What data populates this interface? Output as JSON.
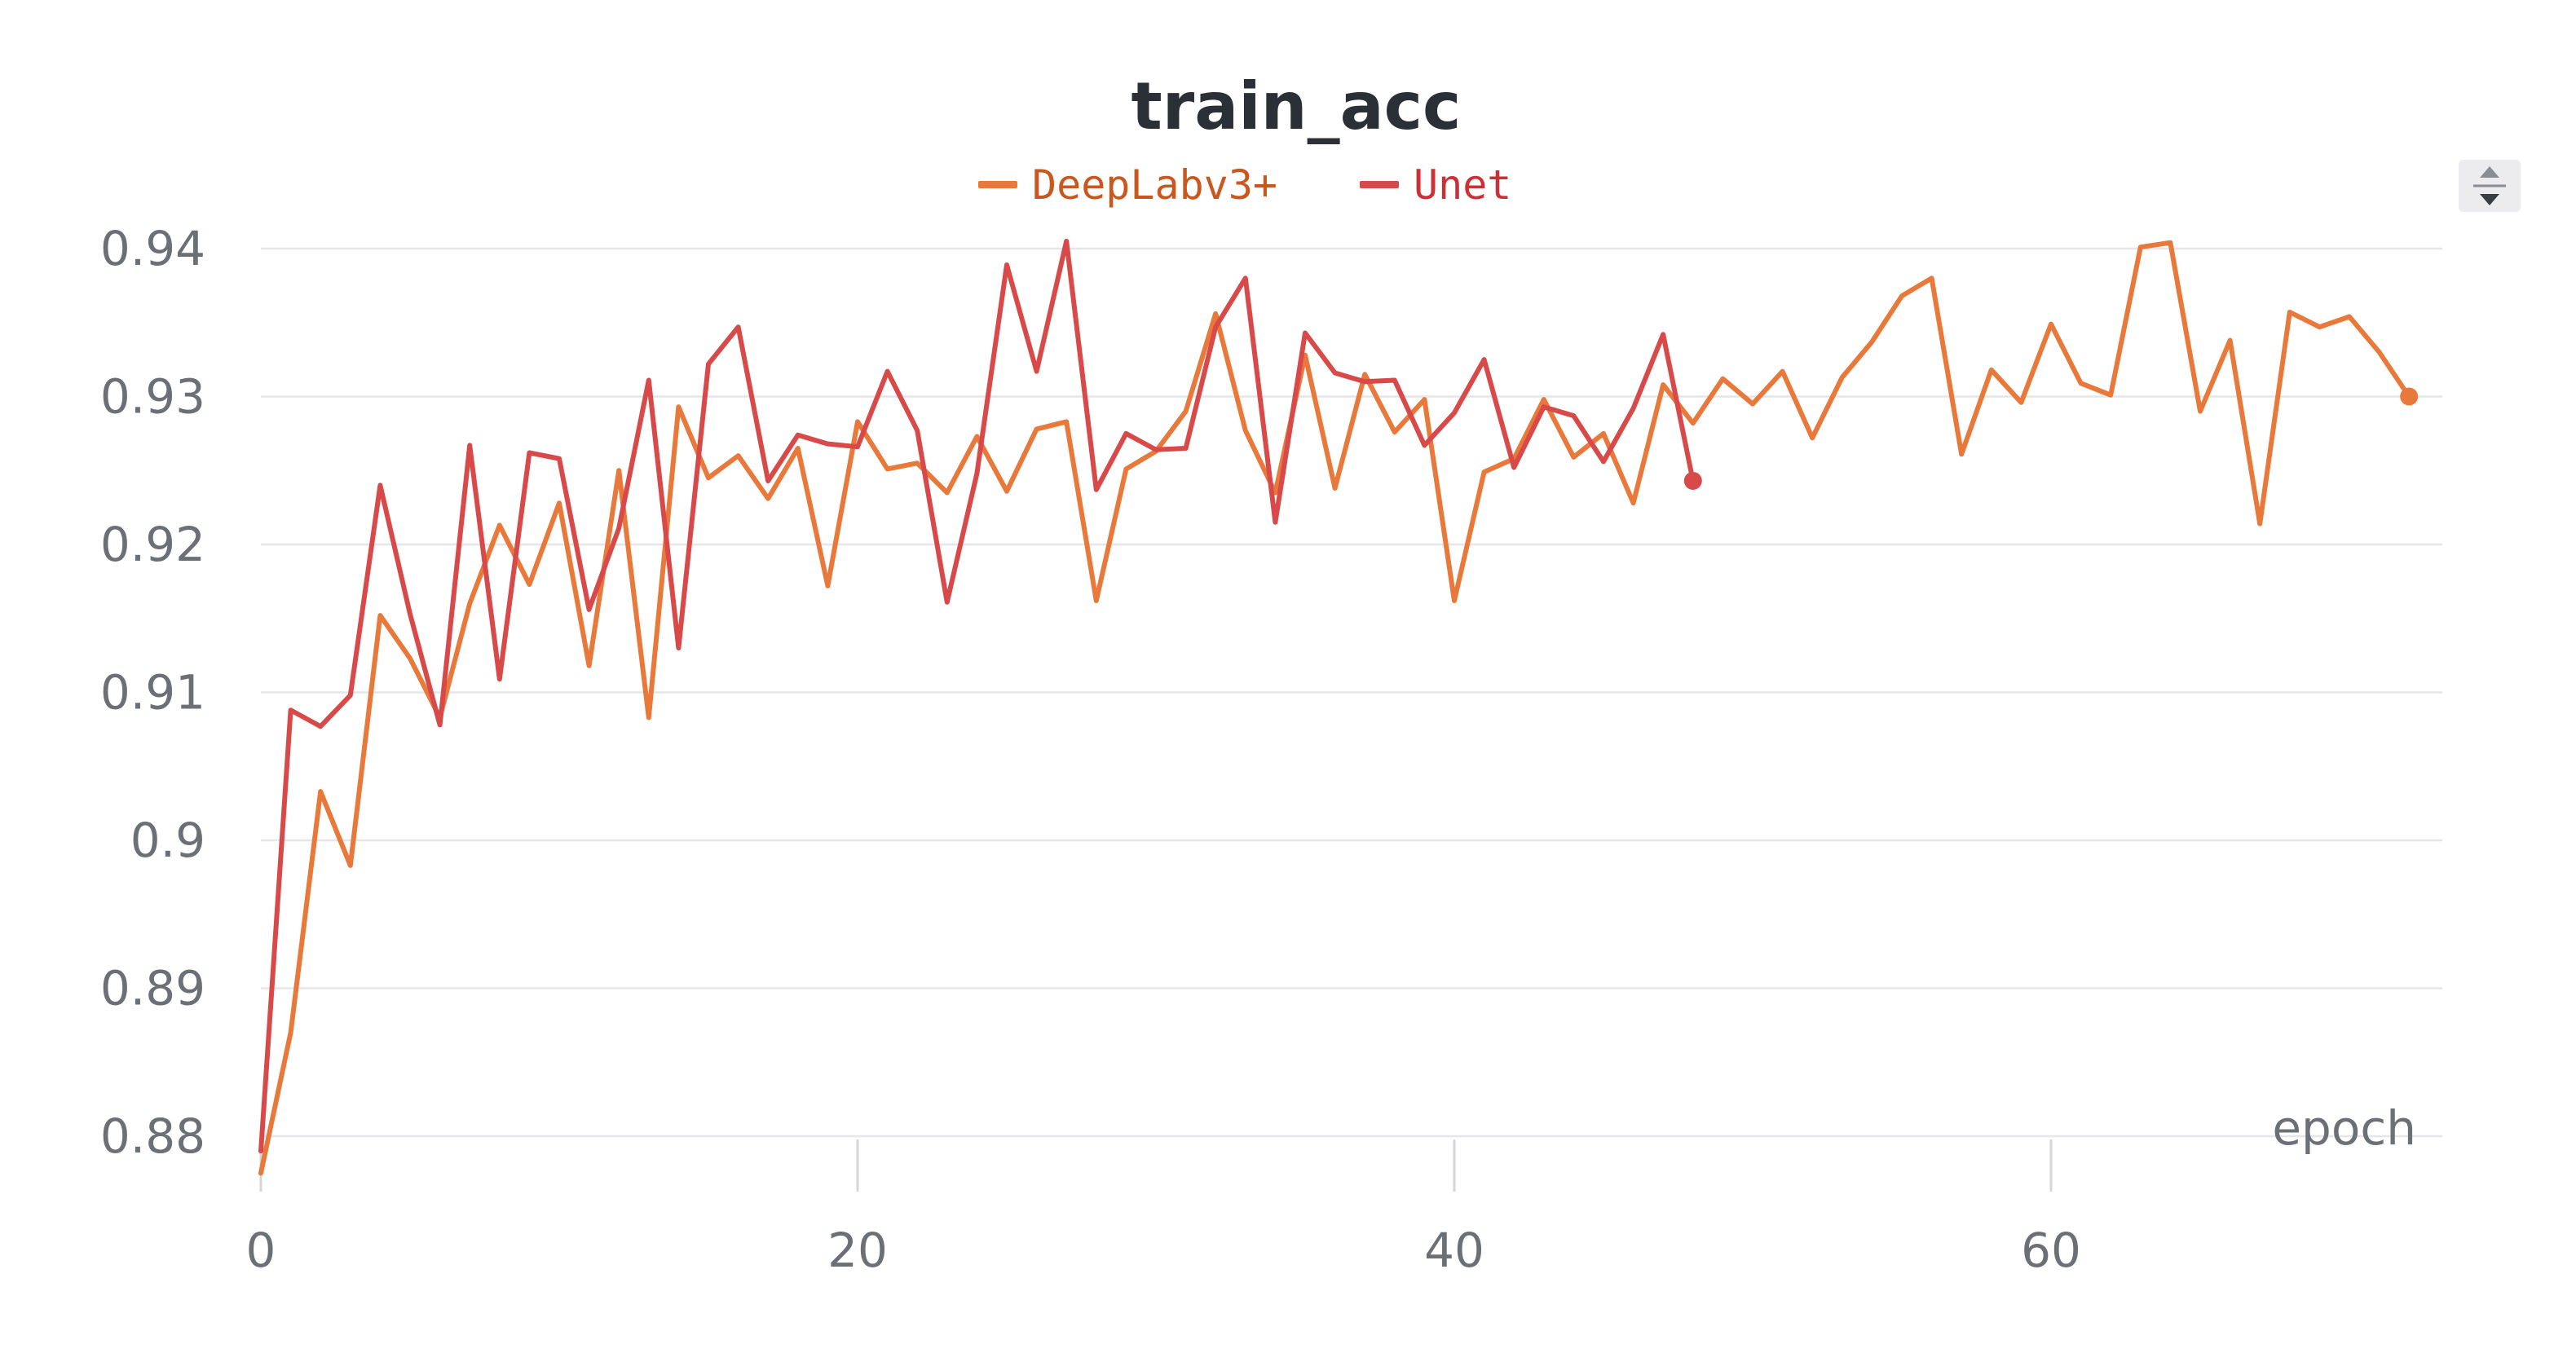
{
  "chart_data": {
    "type": "line",
    "title": "train_acc",
    "xlabel": "epoch",
    "ylabel": "",
    "xlim": [
      0,
      72
    ],
    "ylim": [
      0.879,
      0.941
    ],
    "x_ticks": [
      0,
      20,
      40,
      60
    ],
    "x_tick_labels": [
      "0",
      "20",
      "40",
      "60"
    ],
    "y_ticks": [
      0.88,
      0.89,
      0.9,
      0.91,
      0.92,
      0.93,
      0.94
    ],
    "y_tick_labels": [
      "0.88",
      "0.89",
      "0.9",
      "0.91",
      "0.92",
      "0.93",
      "0.94"
    ],
    "grid": "horizontal",
    "legend": "top-center",
    "series": [
      {
        "name": "DeepLabv3+",
        "color": "#e8793a",
        "legend_text_color": "#c9571e",
        "end_marker": true,
        "x": [
          0,
          1,
          2,
          3,
          4,
          5,
          6,
          7,
          8,
          9,
          10,
          11,
          12,
          13,
          14,
          15,
          16,
          17,
          18,
          19,
          20,
          21,
          22,
          23,
          24,
          25,
          26,
          27,
          28,
          29,
          30,
          31,
          32,
          33,
          34,
          35,
          36,
          37,
          38,
          39,
          40,
          41,
          42,
          43,
          44,
          45,
          46,
          47,
          48,
          49,
          50,
          51,
          52,
          53,
          54,
          55,
          56,
          57,
          58,
          59,
          60,
          61,
          62,
          63,
          64,
          65,
          66,
          67,
          68,
          69,
          70,
          71,
          72
        ],
        "values": [
          0.8775,
          0.887,
          0.9033,
          0.8983,
          0.9152,
          0.9123,
          0.9083,
          0.916,
          0.9213,
          0.9173,
          0.9228,
          0.9118,
          0.925,
          0.9083,
          0.9293,
          0.9245,
          0.926,
          0.9231,
          0.9265,
          0.9172,
          0.9283,
          0.9251,
          0.9255,
          0.9235,
          0.9273,
          0.9236,
          0.9278,
          0.9283,
          0.9162,
          0.9251,
          0.9263,
          0.929,
          0.9356,
          0.9277,
          0.9235,
          0.9328,
          0.9238,
          0.9315,
          0.9276,
          0.9298,
          0.9162,
          0.9249,
          0.9258,
          0.9298,
          0.9259,
          0.9275,
          0.9228,
          0.9308,
          0.9282,
          0.9312,
          0.9295,
          0.9317,
          0.9272,
          0.9313,
          0.9337,
          0.9368,
          0.938,
          0.9261,
          0.9318,
          0.9296,
          0.9349,
          0.9309,
          0.9301,
          0.9401,
          0.9404,
          0.929,
          0.9338,
          0.9214,
          0.9357,
          0.9347,
          0.9354,
          0.933,
          0.93
        ]
      },
      {
        "name": "Unet",
        "color": "#d84a4a",
        "legend_text_color": "#cc2f36",
        "end_marker": true,
        "x": [
          0,
          1,
          2,
          3,
          4,
          5,
          6,
          7,
          8,
          9,
          10,
          11,
          12,
          13,
          14,
          15,
          16,
          17,
          18,
          19,
          20,
          21,
          22,
          23,
          24,
          25,
          26,
          27,
          28,
          29,
          30,
          31,
          32,
          33,
          34,
          35,
          36,
          37,
          38,
          39,
          40,
          41,
          42,
          43,
          44,
          45,
          46,
          47,
          48
        ],
        "values": [
          0.879,
          0.9088,
          0.9077,
          0.9098,
          0.924,
          0.9153,
          0.9078,
          0.9267,
          0.9109,
          0.9262,
          0.9258,
          0.9156,
          0.9211,
          0.9311,
          0.913,
          0.9322,
          0.9347,
          0.9243,
          0.9274,
          0.9268,
          0.9266,
          0.9317,
          0.9277,
          0.9161,
          0.9248,
          0.9389,
          0.9317,
          0.9405,
          0.9237,
          0.9275,
          0.9264,
          0.9265,
          0.9347,
          0.938,
          0.9215,
          0.9343,
          0.9316,
          0.931,
          0.9311,
          0.9267,
          0.9289,
          0.9325,
          0.9252,
          0.9293,
          0.9287,
          0.9256,
          0.9292,
          0.9342,
          0.9243
        ]
      }
    ]
  },
  "controls": {
    "scroll_icon": "up-down-arrows-icon"
  }
}
